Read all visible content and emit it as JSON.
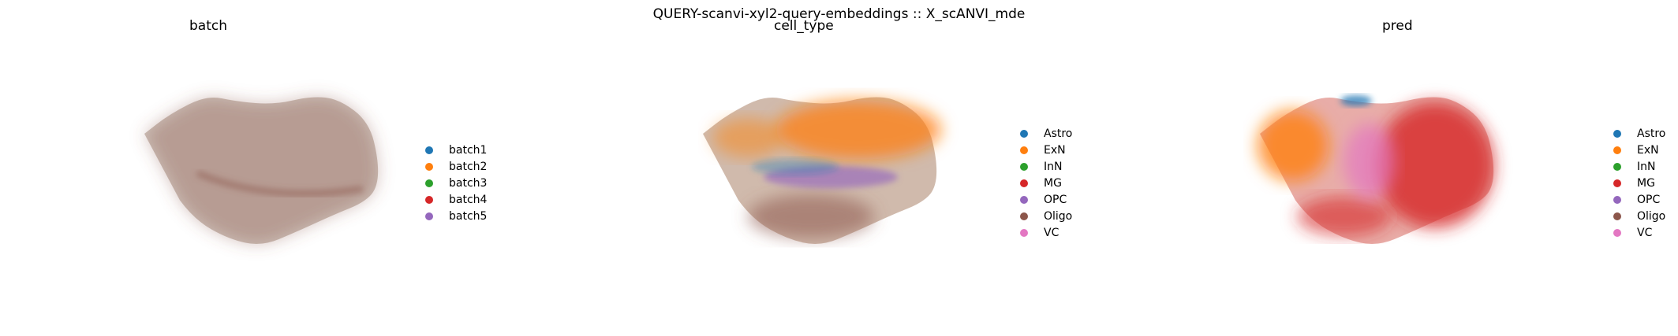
{
  "figure": {
    "suptitle": "QUERY-scanvi-xyl2-query-embeddings :: X_scANVI_mde"
  },
  "chart_data": [
    {
      "type": "scatter",
      "title": "batch",
      "xlabel": "",
      "ylabel": "",
      "axes_visible": false,
      "grid": false,
      "legend_position": "right",
      "legend": [
        {
          "label": "batch1",
          "color": "#1f77b4"
        },
        {
          "label": "batch2",
          "color": "#ff7f0e"
        },
        {
          "label": "batch3",
          "color": "#2ca02c"
        },
        {
          "label": "batch4",
          "color": "#d62728"
        },
        {
          "label": "batch5",
          "color": "#9467bd"
        }
      ],
      "dominant_point_color": "#8c564b"
    },
    {
      "type": "scatter",
      "title": "cell_type",
      "xlabel": "",
      "ylabel": "",
      "axes_visible": false,
      "grid": false,
      "legend_position": "right",
      "legend": [
        {
          "label": "Astro",
          "color": "#1f77b4"
        },
        {
          "label": "ExN",
          "color": "#ff7f0e"
        },
        {
          "label": "InN",
          "color": "#2ca02c"
        },
        {
          "label": "MG",
          "color": "#d62728"
        },
        {
          "label": "OPC",
          "color": "#9467bd"
        },
        {
          "label": "Oligo",
          "color": "#8c564b"
        },
        {
          "label": "VC",
          "color": "#e377c2"
        }
      ]
    },
    {
      "type": "scatter",
      "title": "pred",
      "xlabel": "",
      "ylabel": "",
      "axes_visible": false,
      "grid": false,
      "legend_position": "right",
      "legend": [
        {
          "label": "Astro",
          "color": "#1f77b4"
        },
        {
          "label": "ExN",
          "color": "#ff7f0e"
        },
        {
          "label": "InN",
          "color": "#2ca02c"
        },
        {
          "label": "MG",
          "color": "#d62728"
        },
        {
          "label": "OPC",
          "color": "#9467bd"
        },
        {
          "label": "Oligo",
          "color": "#8c564b"
        },
        {
          "label": "VC",
          "color": "#e377c2"
        }
      ]
    }
  ]
}
